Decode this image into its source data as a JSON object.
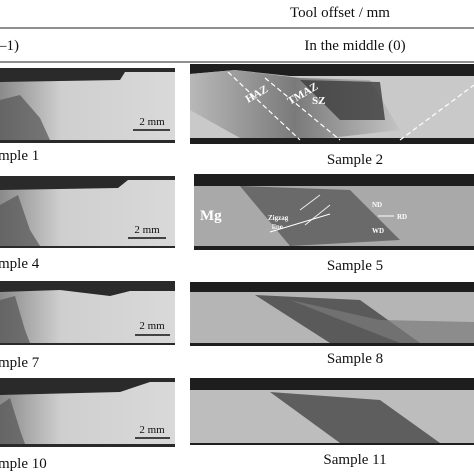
{
  "header": {
    "title": "Tool offset / mm",
    "columns": [
      "–1)",
      "In the middle (0)"
    ]
  },
  "panels": [
    {
      "label": "mple 1",
      "scale": "2 mm"
    },
    {
      "label": "Sample 2",
      "annotations": [
        "HAZ",
        "TMAZ",
        "SZ"
      ]
    },
    {
      "label": "mple 4",
      "scale": "2 mm"
    },
    {
      "label": "Sample 5",
      "annotations": [
        "Mg",
        "Zigzag",
        "line",
        "ND",
        "RD",
        "WD"
      ]
    },
    {
      "label": "mple 7",
      "scale": "2 mm"
    },
    {
      "label": "Sample 8"
    },
    {
      "label": "mple 10",
      "scale": "2 mm"
    },
    {
      "label": "Sample 11"
    }
  ]
}
